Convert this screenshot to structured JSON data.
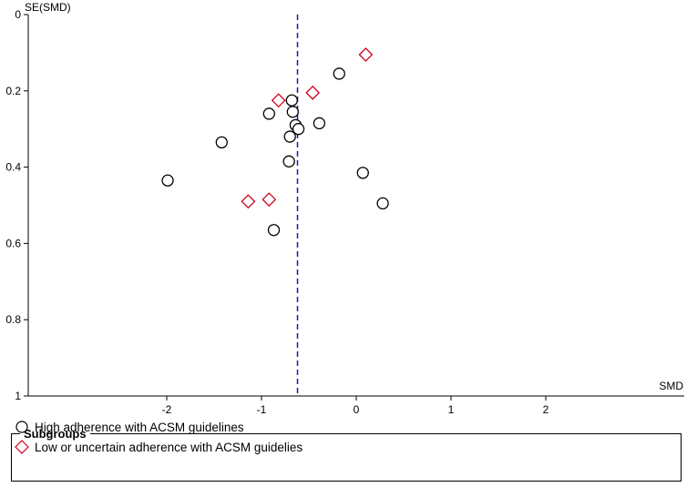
{
  "chart_data": {
    "type": "scatter",
    "title": "",
    "xlabel": "SMD",
    "ylabel": "SE(SMD)",
    "xlim": [
      -3.5,
      3.2
    ],
    "ylim": [
      1,
      0
    ],
    "y_inverted": true,
    "x_ticks": [
      -2,
      -1,
      0,
      1,
      2
    ],
    "y_ticks": [
      0,
      0.2,
      0.4,
      0.6,
      0.8,
      1
    ],
    "reference_line": {
      "x": -0.62,
      "style": "dashed",
      "color": "#1a1aa6"
    },
    "legend_title": "Subgroups",
    "series": [
      {
        "name": "High adherence with ACSM guidelines",
        "marker": "circle",
        "color": "#000000",
        "points": [
          {
            "x": -0.18,
            "y": 0.155
          },
          {
            "x": -0.68,
            "y": 0.225
          },
          {
            "x": -0.67,
            "y": 0.255
          },
          {
            "x": -0.92,
            "y": 0.26
          },
          {
            "x": -0.64,
            "y": 0.29
          },
          {
            "x": -0.61,
            "y": 0.3
          },
          {
            "x": -0.39,
            "y": 0.285
          },
          {
            "x": -0.7,
            "y": 0.32
          },
          {
            "x": -1.42,
            "y": 0.335
          },
          {
            "x": -0.71,
            "y": 0.385
          },
          {
            "x": 0.07,
            "y": 0.415
          },
          {
            "x": -1.99,
            "y": 0.435
          },
          {
            "x": 0.28,
            "y": 0.495
          },
          {
            "x": -0.87,
            "y": 0.565
          }
        ]
      },
      {
        "name": "Low or uncertain adherence with ACSM guidelies",
        "marker": "diamond",
        "color": "#d0021b",
        "points": [
          {
            "x": 0.1,
            "y": 0.105
          },
          {
            "x": -0.46,
            "y": 0.205
          },
          {
            "x": -0.82,
            "y": 0.225
          },
          {
            "x": -0.92,
            "y": 0.485
          },
          {
            "x": -1.14,
            "y": 0.49
          }
        ]
      }
    ]
  }
}
